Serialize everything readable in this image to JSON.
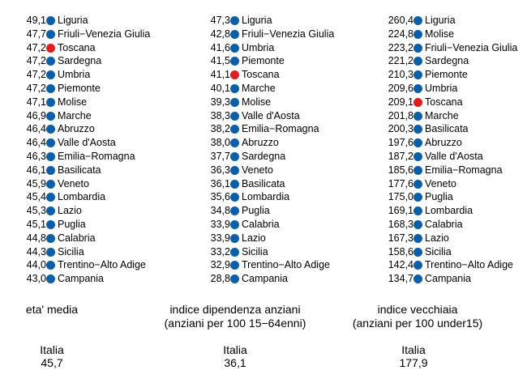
{
  "colors": {
    "normal": "#0b5fa8",
    "highlight": "#e01e1e"
  },
  "chart_data": [
    {
      "type": "table",
      "title": "eta' media",
      "subtitle": "",
      "highlight": "Toscana",
      "italia_label": "Italia",
      "italia_value": "45,7",
      "rows": [
        {
          "region": "Liguria",
          "value": "49,1"
        },
        {
          "region": "Friuli−Venezia Giulia",
          "value": "47,7"
        },
        {
          "region": "Toscana",
          "value": "47,2"
        },
        {
          "region": "Sardegna",
          "value": "47,2"
        },
        {
          "region": "Umbria",
          "value": "47,2"
        },
        {
          "region": "Piemonte",
          "value": "47,2"
        },
        {
          "region": "Molise",
          "value": "47,1"
        },
        {
          "region": "Marche",
          "value": "46,9"
        },
        {
          "region": "Abruzzo",
          "value": "46,4"
        },
        {
          "region": "Valle d'Aosta",
          "value": "46,4"
        },
        {
          "region": "Emilia−Romagna",
          "value": "46,3"
        },
        {
          "region": "Basilicata",
          "value": "46,1"
        },
        {
          "region": "Veneto",
          "value": "45,9"
        },
        {
          "region": "Lombardia",
          "value": "45,4"
        },
        {
          "region": "Lazio",
          "value": "45,3"
        },
        {
          "region": "Puglia",
          "value": "45,1"
        },
        {
          "region": "Calabria",
          "value": "44,8"
        },
        {
          "region": "Sicilia",
          "value": "44,3"
        },
        {
          "region": "Trentino−Alto Adige",
          "value": "44,0"
        },
        {
          "region": "Campania",
          "value": "43,0"
        }
      ]
    },
    {
      "type": "table",
      "title": "indice dipendenza anziani",
      "subtitle": "(anziani per 100 15−64enni)",
      "highlight": "Toscana",
      "italia_label": "Italia",
      "italia_value": "36,1",
      "rows": [
        {
          "region": "Liguria",
          "value": "47,3"
        },
        {
          "region": "Friuli−Venezia Giulia",
          "value": "42,8"
        },
        {
          "region": "Umbria",
          "value": "41,6"
        },
        {
          "region": "Piemonte",
          "value": "41,5"
        },
        {
          "region": "Toscana",
          "value": "41,1"
        },
        {
          "region": "Marche",
          "value": "40,1"
        },
        {
          "region": "Molise",
          "value": "39,3"
        },
        {
          "region": "Valle d'Aosta",
          "value": "38,3"
        },
        {
          "region": "Emilia−Romagna",
          "value": "38,2"
        },
        {
          "region": "Abruzzo",
          "value": "38,0"
        },
        {
          "region": "Sardegna",
          "value": "37,7"
        },
        {
          "region": "Veneto",
          "value": "36,3"
        },
        {
          "region": "Basilicata",
          "value": "36,1"
        },
        {
          "region": "Lombardia",
          "value": "35,6"
        },
        {
          "region": "Puglia",
          "value": "34,8"
        },
        {
          "region": "Calabria",
          "value": "33,9"
        },
        {
          "region": "Lazio",
          "value": "33,9"
        },
        {
          "region": "Sicilia",
          "value": "33,2"
        },
        {
          "region": "Trentino−Alto Adige",
          "value": "32,9"
        },
        {
          "region": "Campania",
          "value": "28,8"
        }
      ]
    },
    {
      "type": "table",
      "title": "indice vecchiaia",
      "subtitle": "(anziani per 100 under15)",
      "highlight": "Toscana",
      "italia_label": "Italia",
      "italia_value": "177,9",
      "rows": [
        {
          "region": "Liguria",
          "value": "260,4"
        },
        {
          "region": "Molise",
          "value": "224,8"
        },
        {
          "region": "Friuli−Venezia Giulia",
          "value": "223,2"
        },
        {
          "region": "Sardegna",
          "value": "221,2"
        },
        {
          "region": "Piemonte",
          "value": "210,3"
        },
        {
          "region": "Umbria",
          "value": "209,6"
        },
        {
          "region": "Toscana",
          "value": "209,1"
        },
        {
          "region": "Marche",
          "value": "201,8"
        },
        {
          "region": "Basilicata",
          "value": "200,3"
        },
        {
          "region": "Abruzzo",
          "value": "197,6"
        },
        {
          "region": "Valle d'Aosta",
          "value": "187,2"
        },
        {
          "region": "Emilia−Romagna",
          "value": "185,6"
        },
        {
          "region": "Veneto",
          "value": "177,6"
        },
        {
          "region": "Puglia",
          "value": "175,0"
        },
        {
          "region": "Lombardia",
          "value": "169,1"
        },
        {
          "region": "Calabria",
          "value": "168,3"
        },
        {
          "region": "Lazio",
          "value": "167,3"
        },
        {
          "region": "Sicilia",
          "value": "158,6"
        },
        {
          "region": "Trentino−Alto Adige",
          "value": "142,4"
        },
        {
          "region": "Campania",
          "value": "134,7"
        }
      ]
    }
  ]
}
